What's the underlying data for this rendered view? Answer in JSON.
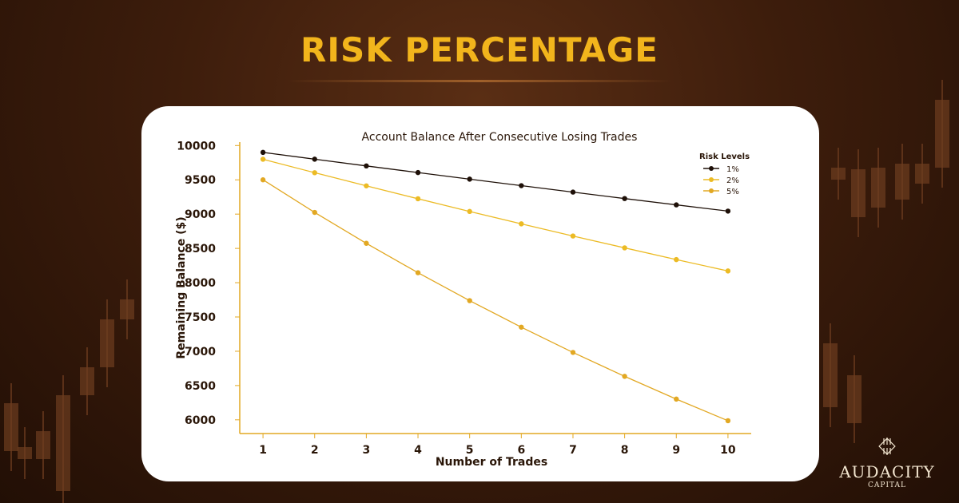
{
  "header": {
    "title": "RISK PERCENTAGE"
  },
  "brand": {
    "name": "AUDACITY",
    "sub": "CAPITAL"
  },
  "chart_data": {
    "type": "line",
    "title": "Account Balance After Consecutive Losing Trades",
    "xlabel": "Number of Trades",
    "ylabel": "Remaining Balance ($)",
    "x": [
      1,
      2,
      3,
      4,
      5,
      6,
      7,
      8,
      9,
      10
    ],
    "xlim": [
      0.55,
      10.45
    ],
    "ylim": [
      5800,
      10050
    ],
    "yticks": [
      6000,
      6500,
      7000,
      7500,
      8000,
      8500,
      9000,
      9500,
      10000
    ],
    "grid": false,
    "legend": {
      "title": "Risk Levels",
      "position": "top-right"
    },
    "series": [
      {
        "name": "1%",
        "color": "#1e1008",
        "values": [
          9900,
          9801,
          9703,
          9606,
          9510,
          9415,
          9321,
          9227,
          9135,
          9044
        ]
      },
      {
        "name": "2%",
        "color": "#ecbb25",
        "values": [
          9800,
          9604,
          9412,
          9224,
          9039,
          8858,
          8681,
          8508,
          8337,
          8171
        ]
      },
      {
        "name": "5%",
        "color": "#e2a823",
        "values": [
          9500,
          9025,
          8574,
          8145,
          7738,
          7351,
          6983,
          6634,
          6302,
          5987
        ]
      }
    ]
  }
}
